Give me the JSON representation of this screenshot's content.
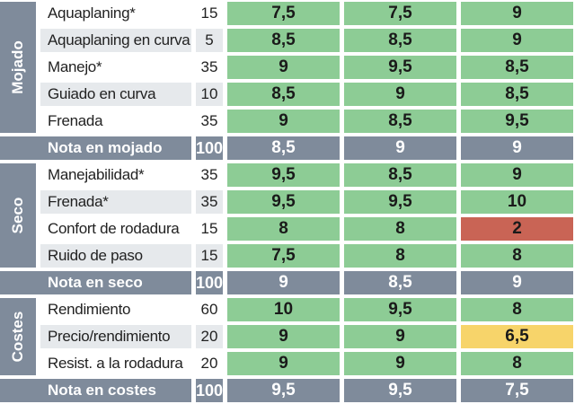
{
  "colors": {
    "good": "#8dcc95",
    "bad": "#c96455",
    "medium": "#f7d46a",
    "summary": "#7f8b9b"
  },
  "sections": [
    {
      "name": "Mojado",
      "rows": [
        {
          "label": "Aquaplaning*",
          "weight": "15",
          "scores": [
            "7,5",
            "7,5",
            "9"
          ]
        },
        {
          "label": "Aquaplaning en curva",
          "weight": "5",
          "scores": [
            "8,5",
            "8,5",
            "9"
          ]
        },
        {
          "label": "Manejo*",
          "weight": "35",
          "scores": [
            "9",
            "9,5",
            "8,5"
          ]
        },
        {
          "label": "Guiado en curva",
          "weight": "10",
          "scores": [
            "8,5",
            "9",
            "8,5"
          ]
        },
        {
          "label": "Frenada",
          "weight": "35",
          "scores": [
            "9",
            "8,5",
            "9,5"
          ]
        }
      ],
      "summary": {
        "label": "Nota en mojado",
        "weight": "100",
        "scores": [
          "8,5",
          "9",
          "9"
        ]
      }
    },
    {
      "name": "Seco",
      "rows": [
        {
          "label": "Manejabilidad*",
          "weight": "35",
          "scores": [
            "9,5",
            "8,5",
            "9"
          ]
        },
        {
          "label": "Frenada*",
          "weight": "35",
          "scores": [
            "9,5",
            "9,5",
            "10"
          ]
        },
        {
          "label": "Confort de rodadura",
          "weight": "15",
          "scores": [
            "8",
            "8",
            "2"
          ],
          "levels": [
            "good",
            "good",
            "bad"
          ]
        },
        {
          "label": "Ruido de paso",
          "weight": "15",
          "scores": [
            "7,5",
            "8",
            "8"
          ]
        }
      ],
      "summary": {
        "label": "Nota en seco",
        "weight": "100",
        "scores": [
          "9",
          "8,5",
          "9"
        ]
      }
    },
    {
      "name": "Costes",
      "rows": [
        {
          "label": "Rendimiento",
          "weight": "60",
          "scores": [
            "10",
            "9,5",
            "8"
          ]
        },
        {
          "label": "Precio/rendimiento",
          "weight": "20",
          "scores": [
            "9",
            "9",
            "6,5"
          ],
          "levels": [
            "good",
            "good",
            "medium"
          ]
        },
        {
          "label": "Resist. a la rodadura",
          "weight": "20",
          "scores": [
            "9",
            "9",
            "8"
          ]
        }
      ],
      "summary": {
        "label": "Nota en costes",
        "weight": "100",
        "scores": [
          "9,5",
          "9,5",
          "7,5"
        ]
      }
    }
  ]
}
